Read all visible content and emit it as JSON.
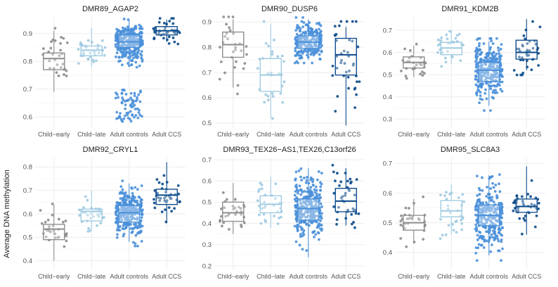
{
  "figure": {
    "ylabel": "Average DNA methylation",
    "colors": {
      "Child-early": "#8c8c8c",
      "Child-late": "#9ecae1",
      "Adult controls": "#4a90d9",
      "Adult CCS": "#0b4a8b",
      "grid": "#ebebeb"
    }
  },
  "chart_data": [
    {
      "type": "box-jitter",
      "title": "DMR89_AGAP2",
      "categories": [
        "Child−early",
        "Child−late",
        "Adult controls",
        "Adult CCS"
      ],
      "ylim": [
        0.56,
        0.96
      ],
      "yticks": [
        0.6,
        0.7,
        0.8,
        0.9
      ],
      "ytick_labels": [
        "0.6",
        "0.7",
        "0.8",
        "0.9"
      ],
      "boxes": [
        {
          "q1": 0.77,
          "median": 0.81,
          "q3": 0.83,
          "whisker_low": 0.69,
          "whisker_high": 0.91
        },
        {
          "q1": 0.82,
          "median": 0.84,
          "q3": 0.855,
          "whisker_low": 0.78,
          "whisker_high": 0.92
        },
        {
          "q1": 0.85,
          "median": 0.87,
          "q3": 0.895,
          "whisker_low": 0.79,
          "whisker_high": 0.95
        },
        {
          "q1": 0.895,
          "median": 0.91,
          "q3": 0.925,
          "whisker_low": 0.87,
          "whisker_high": 0.95
        }
      ],
      "points_per_group": [
        30,
        30,
        300,
        40
      ],
      "extra_clusters": [
        {
          "group": 2,
          "n": 70,
          "low": 0.58,
          "high": 0.7
        }
      ]
    },
    {
      "type": "box-jitter",
      "title": "DMR90_DUSP6",
      "categories": [
        "Child−early",
        "Child−late",
        "Adult controls",
        "Adult CCS"
      ],
      "ylim": [
        0.48,
        0.92
      ],
      "yticks": [
        0.5,
        0.6,
        0.7,
        0.8,
        0.9
      ],
      "ytick_labels": [
        "0.5",
        "0.6",
        "0.7",
        "0.8",
        "0.9"
      ],
      "boxes": [
        {
          "q1": 0.76,
          "median": 0.81,
          "q3": 0.86,
          "whisker_low": 0.64,
          "whisker_high": 0.91
        },
        {
          "q1": 0.625,
          "median": 0.69,
          "q3": 0.755,
          "whisker_low": 0.52,
          "whisker_high": 0.89
        },
        {
          "q1": 0.795,
          "median": 0.82,
          "q3": 0.845,
          "whisker_low": 0.75,
          "whisker_high": 0.91
        },
        {
          "q1": 0.69,
          "median": 0.77,
          "q3": 0.835,
          "whisker_low": 0.49,
          "whisker_high": 0.88
        }
      ],
      "points_per_group": [
        30,
        30,
        230,
        40
      ],
      "extra_clusters": []
    },
    {
      "type": "box-jitter",
      "title": "DMR91_KDM2B",
      "categories": [
        "Child−early",
        "Child−late",
        "Adult controls",
        "Adult CCS"
      ],
      "ylim": [
        0.26,
        0.76
      ],
      "yticks": [
        0.3,
        0.4,
        0.5,
        0.6,
        0.7
      ],
      "ytick_labels": [
        "0.3",
        "0.4",
        "0.5",
        "0.6",
        "0.7"
      ],
      "boxes": [
        {
          "q1": 0.53,
          "median": 0.555,
          "q3": 0.58,
          "whisker_low": 0.49,
          "whisker_high": 0.63
        },
        {
          "q1": 0.59,
          "median": 0.62,
          "q3": 0.645,
          "whisker_low": 0.55,
          "whisker_high": 0.7
        },
        {
          "q1": 0.47,
          "median": 0.52,
          "q3": 0.555,
          "whisker_low": 0.36,
          "whisker_high": 0.65
        },
        {
          "q1": 0.57,
          "median": 0.6,
          "q3": 0.655,
          "whisker_low": 0.52,
          "whisker_high": 0.75
        }
      ],
      "points_per_group": [
        30,
        30,
        300,
        40
      ],
      "extra_clusters": []
    },
    {
      "type": "box-jitter",
      "title": "DMR92_CRYL1",
      "categories": [
        "Child−early",
        "Child−late",
        "Adult controls",
        "Adult CCS"
      ],
      "ylim": [
        0.36,
        0.84
      ],
      "yticks": [
        0.4,
        0.5,
        0.6,
        0.7,
        0.8
      ],
      "ytick_labels": [
        "0.4",
        "0.5",
        "0.6",
        "0.7",
        "0.8"
      ],
      "boxes": [
        {
          "q1": 0.49,
          "median": 0.535,
          "q3": 0.555,
          "whisker_low": 0.4,
          "whisker_high": 0.64
        },
        {
          "q1": 0.57,
          "median": 0.61,
          "q3": 0.62,
          "whisker_low": 0.53,
          "whisker_high": 0.7
        },
        {
          "q1": 0.565,
          "median": 0.605,
          "q3": 0.635,
          "whisker_low": 0.48,
          "whisker_high": 0.73
        },
        {
          "q1": 0.64,
          "median": 0.68,
          "q3": 0.705,
          "whisker_low": 0.56,
          "whisker_high": 0.82
        }
      ],
      "points_per_group": [
        30,
        30,
        300,
        40
      ],
      "extra_clusters": []
    },
    {
      "type": "box-jitter",
      "title": "DMR93_TEX26−AS1,TEX26,C13orf26",
      "categories": [
        "Child−early",
        "Child−late",
        "Adult controls",
        "Adult CCS"
      ],
      "ylim": [
        0.18,
        0.71
      ],
      "yticks": [
        0.2,
        0.3,
        0.4,
        0.5,
        0.6,
        0.7
      ],
      "ytick_labels": [
        "0.2",
        "0.3",
        "0.4",
        "0.5",
        "0.6",
        "0.7"
      ],
      "boxes": [
        {
          "q1": 0.41,
          "median": 0.45,
          "q3": 0.5,
          "whisker_low": 0.35,
          "whisker_high": 0.59
        },
        {
          "q1": 0.45,
          "median": 0.49,
          "q3": 0.53,
          "whisker_low": 0.38,
          "whisker_high": 0.62
        },
        {
          "q1": 0.415,
          "median": 0.47,
          "q3": 0.515,
          "whisker_low": 0.24,
          "whisker_high": 0.66
        },
        {
          "q1": 0.455,
          "median": 0.505,
          "q3": 0.565,
          "whisker_low": 0.39,
          "whisker_high": 0.66
        }
      ],
      "points_per_group": [
        30,
        30,
        300,
        40
      ],
      "extra_clusters": []
    },
    {
      "type": "box-jitter",
      "title": "DMR95_SLC8A3",
      "categories": [
        "Child−early",
        "Child−late",
        "Adult controls",
        "Adult CCS"
      ],
      "ylim": [
        0.34,
        0.72
      ],
      "yticks": [
        0.4,
        0.5,
        0.6,
        0.7
      ],
      "ytick_labels": [
        "0.4",
        "0.5",
        "0.6",
        "0.7"
      ],
      "boxes": [
        {
          "q1": 0.475,
          "median": 0.5,
          "q3": 0.525,
          "whisker_low": 0.43,
          "whisker_high": 0.58
        },
        {
          "q1": 0.52,
          "median": 0.54,
          "q3": 0.575,
          "whisker_low": 0.46,
          "whisker_high": 0.63
        },
        {
          "q1": 0.49,
          "median": 0.525,
          "q3": 0.56,
          "whisker_low": 0.39,
          "whisker_high": 0.66
        },
        {
          "q1": 0.535,
          "median": 0.555,
          "q3": 0.58,
          "whisker_low": 0.46,
          "whisker_high": 0.69
        }
      ],
      "points_per_group": [
        30,
        30,
        300,
        40
      ],
      "extra_clusters": []
    }
  ]
}
